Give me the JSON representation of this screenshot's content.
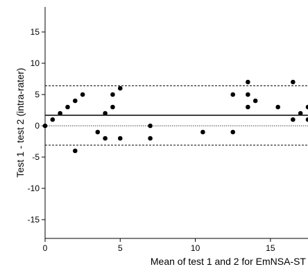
{
  "chart_data": {
    "type": "scatter",
    "xlabel": "Mean of test 1 and 2 for EmNSA-ST",
    "ylabel": "Test 1 - test 2 (intra-rater)",
    "xlim": [
      0,
      17.5
    ],
    "ylim": [
      -18,
      19
    ],
    "xticks": [
      0,
      5,
      10,
      15
    ],
    "yticks": [
      -15,
      -10,
      -5,
      0,
      5,
      10,
      15
    ],
    "grid": false,
    "points": [
      {
        "x": 0,
        "y": 0
      },
      {
        "x": 0.5,
        "y": 1
      },
      {
        "x": 1,
        "y": 2
      },
      {
        "x": 1.5,
        "y": 3
      },
      {
        "x": 2,
        "y": 4
      },
      {
        "x": 2,
        "y": -4
      },
      {
        "x": 2.5,
        "y": 5
      },
      {
        "x": 3.5,
        "y": -1
      },
      {
        "x": 4,
        "y": 2
      },
      {
        "x": 4,
        "y": -2
      },
      {
        "x": 4.5,
        "y": 5
      },
      {
        "x": 4.5,
        "y": 3
      },
      {
        "x": 5,
        "y": 6
      },
      {
        "x": 5,
        "y": -2
      },
      {
        "x": 7,
        "y": 0
      },
      {
        "x": 7,
        "y": -2
      },
      {
        "x": 10.5,
        "y": -1
      },
      {
        "x": 12.5,
        "y": 5
      },
      {
        "x": 12.5,
        "y": -1
      },
      {
        "x": 13.5,
        "y": 7
      },
      {
        "x": 13.5,
        "y": 5
      },
      {
        "x": 13.5,
        "y": 3
      },
      {
        "x": 14,
        "y": 4
      },
      {
        "x": 15.5,
        "y": 3
      },
      {
        "x": 16.5,
        "y": 7
      },
      {
        "x": 16.5,
        "y": 1
      },
      {
        "x": 17,
        "y": 2
      },
      {
        "x": 17.5,
        "y": 3
      },
      {
        "x": 17.5,
        "y": 1
      }
    ],
    "reference_lines": [
      {
        "y": 1.7,
        "style": "solid"
      },
      {
        "y": 6.4,
        "style": "dashed"
      },
      {
        "y": -3.1,
        "style": "dashed"
      },
      {
        "y": 0,
        "style": "dotted"
      }
    ]
  }
}
